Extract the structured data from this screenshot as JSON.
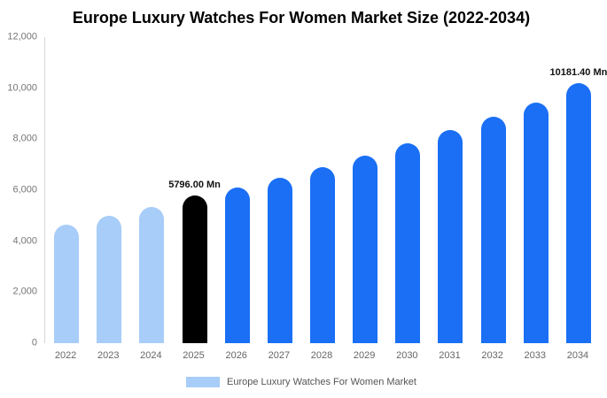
{
  "title": "Europe Luxury Watches For Women Market Size (2022-2034)",
  "colors": {
    "light_blue": "#a7cdf8",
    "blue": "#1a6ff5",
    "black": "#000000",
    "axis_text": "#757575"
  },
  "legend": {
    "label": "Europe Luxury Watches For Women Market",
    "swatch_color": "#a7cdf8"
  },
  "chart_data": {
    "type": "bar",
    "title": "Europe Luxury Watches For Women Market Size (2022-2034)",
    "xlabel": "",
    "ylabel": "",
    "ylim": [
      0,
      12000
    ],
    "grid": false,
    "legend_position": "bottom",
    "yticks": [
      "12,000",
      "10,000",
      "8,000",
      "6,000",
      "4,000",
      "2,000",
      "0"
    ],
    "categories": [
      "2022",
      "2023",
      "2024",
      "2025",
      "2026",
      "2027",
      "2028",
      "2029",
      "2030",
      "2031",
      "2032",
      "2033",
      "2034"
    ],
    "values": [
      4650,
      5000,
      5350,
      5796,
      6100,
      6480,
      6900,
      7350,
      7850,
      8350,
      8880,
      9450,
      10181.4
    ],
    "bar_colors": [
      "light_blue",
      "light_blue",
      "light_blue",
      "black",
      "blue",
      "blue",
      "blue",
      "blue",
      "blue",
      "blue",
      "blue",
      "blue",
      "blue"
    ],
    "annotations": [
      {
        "category": "2025",
        "text": "5796.00 Mn"
      },
      {
        "category": "2034",
        "text": "10181.40 Mn"
      }
    ]
  }
}
